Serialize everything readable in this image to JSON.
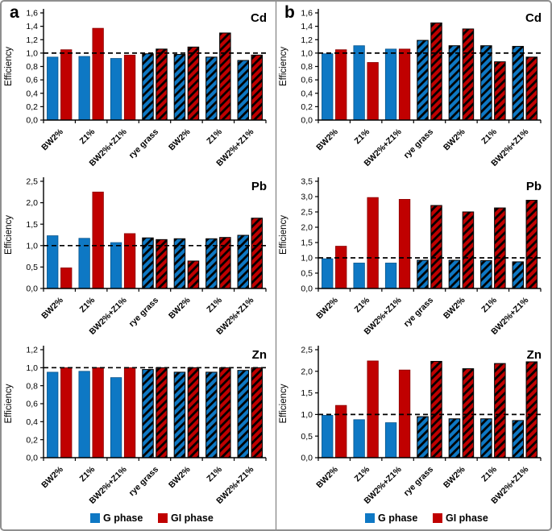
{
  "figure": {
    "background": "#ffffff",
    "border_color": "#8f8f8f",
    "divider_color": "#707070"
  },
  "panels": [
    {
      "label": "a"
    },
    {
      "label": "b"
    }
  ],
  "colors": {
    "g_phase": "#0e78c4",
    "gi_phase": "#c00000",
    "hatch": "#000000",
    "reference_line": "#000000"
  },
  "legend": {
    "g_label": "G phase",
    "gi_label": "GI phase",
    "position": "bottom-center"
  },
  "chart_data": [
    {
      "type": "bar",
      "panel": "a",
      "title": "Cd",
      "ylabel": "Efficiency",
      "ylim": [
        0,
        1.6
      ],
      "yticks": [
        0,
        0.2,
        0.4,
        0.6,
        0.8,
        1.0,
        1.2,
        1.4,
        1.6
      ],
      "ytick_labels": [
        "0,0",
        "0,2",
        "0,4",
        "0,6",
        "0,8",
        "1,0",
        "1,2",
        "1,4",
        "1,6"
      ],
      "ref_line": 1.0,
      "grid": false,
      "categories": [
        "BW2%",
        "Z1%",
        "BW2%+Z1%",
        "rye grass",
        "BW2%",
        "Z1%",
        "BW2%+Z1%"
      ],
      "hatched_from_category_index": 3,
      "series": [
        {
          "name": "G phase",
          "color": "#0e78c4",
          "values": [
            0.94,
            0.95,
            0.92,
            0.99,
            0.98,
            0.94,
            0.89
          ]
        },
        {
          "name": "GI phase",
          "color": "#c00000",
          "values": [
            1.05,
            1.37,
            0.97,
            1.06,
            1.09,
            1.3,
            0.97
          ]
        }
      ],
      "legend_visible": false
    },
    {
      "type": "bar",
      "panel": "b",
      "title": "Cd",
      "ylabel": "Efficiency",
      "ylim": [
        0,
        1.6
      ],
      "yticks": [
        0,
        0.2,
        0.4,
        0.6,
        0.8,
        1.0,
        1.2,
        1.4,
        1.6
      ],
      "ytick_labels": [
        "0,0",
        "0,2",
        "0,4",
        "0,6",
        "0,8",
        "1,0",
        "1,2",
        "1,4",
        "1,6"
      ],
      "ref_line": 1.0,
      "grid": false,
      "categories": [
        "BW2%",
        "Z1%",
        "BW2%+Z1%",
        "rye grass",
        "BW2%",
        "Z1%",
        "BW2%+Z1%"
      ],
      "hatched_from_category_index": 3,
      "series": [
        {
          "name": "G phase",
          "color": "#0e78c4",
          "values": [
            0.99,
            1.11,
            1.06,
            1.19,
            1.11,
            1.11,
            1.1
          ]
        },
        {
          "name": "GI phase",
          "color": "#c00000",
          "values": [
            1.05,
            0.86,
            1.06,
            1.45,
            1.36,
            0.87,
            0.94
          ]
        }
      ],
      "legend_visible": false
    },
    {
      "type": "bar",
      "panel": "a",
      "title": "Pb",
      "ylabel": "Efficiency",
      "ylim": [
        0,
        2.5
      ],
      "yticks": [
        0,
        0.5,
        1.0,
        1.5,
        2.0,
        2.5
      ],
      "ytick_labels": [
        "0,0",
        "0,5",
        "1,0",
        "1,5",
        "2,0",
        "2,5"
      ],
      "ref_line": 1.0,
      "grid": false,
      "categories": [
        "BW2%",
        "Z1%",
        "BW2%+Z1%",
        "rye grass",
        "BW2%",
        "Z1%",
        "BW2%+Z1%"
      ],
      "hatched_from_category_index": 3,
      "series": [
        {
          "name": "G phase",
          "color": "#0e78c4",
          "values": [
            1.23,
            1.17,
            1.07,
            1.18,
            1.16,
            1.16,
            1.24
          ]
        },
        {
          "name": "GI phase",
          "color": "#c00000",
          "values": [
            0.48,
            2.25,
            1.28,
            1.14,
            0.64,
            1.19,
            1.64
          ]
        }
      ],
      "legend_visible": false
    },
    {
      "type": "bar",
      "panel": "b",
      "title": "Pb",
      "ylabel": "Efficiency",
      "ylim": [
        0,
        3.5
      ],
      "yticks": [
        0,
        0.5,
        1.0,
        1.5,
        2.0,
        2.5,
        3.0,
        3.5
      ],
      "ytick_labels": [
        "0,0",
        "0,5",
        "1,0",
        "1,5",
        "2,0",
        "2,5",
        "3,0",
        "3,5"
      ],
      "ref_line": 1.0,
      "grid": false,
      "categories": [
        "BW2%",
        "Z1%",
        "BW2%+Z1%",
        "rye grass",
        "BW2%",
        "Z1%",
        "BW2%+Z1%"
      ],
      "hatched_from_category_index": 3,
      "series": [
        {
          "name": "G phase",
          "color": "#0e78c4",
          "values": [
            0.97,
            0.83,
            0.83,
            0.92,
            0.92,
            0.91,
            0.87
          ]
        },
        {
          "name": "GI phase",
          "color": "#c00000",
          "values": [
            1.38,
            2.97,
            2.91,
            2.71,
            2.5,
            2.63,
            2.88
          ]
        }
      ],
      "legend_visible": false
    },
    {
      "type": "bar",
      "panel": "a",
      "title": "Zn",
      "ylabel": "Efficiency",
      "ylim": [
        0,
        1.2
      ],
      "yticks": [
        0,
        0.2,
        0.4,
        0.6,
        0.8,
        1.0,
        1.2
      ],
      "ytick_labels": [
        "0,0",
        "0,2",
        "0,4",
        "0,6",
        "0,8",
        "1,0",
        "1,2"
      ],
      "ref_line": 1.0,
      "grid": false,
      "categories": [
        "BW2%",
        "Z1%",
        "BW2%+Z1%",
        "rye grass",
        "BW2%",
        "Z1%",
        "BW2%+Z1%"
      ],
      "hatched_from_category_index": 3,
      "series": [
        {
          "name": "G phase",
          "color": "#0e78c4",
          "values": [
            0.95,
            0.96,
            0.89,
            0.98,
            0.95,
            0.95,
            0.97
          ]
        },
        {
          "name": "GI phase",
          "color": "#c00000",
          "values": [
            1.0,
            1.0,
            1.0,
            1.0,
            1.0,
            1.0,
            1.0
          ]
        }
      ],
      "legend_visible": true
    },
    {
      "type": "bar",
      "panel": "b",
      "title": "Zn",
      "ylabel": "Efficiency",
      "ylim": [
        0,
        2.5
      ],
      "yticks": [
        0,
        0.5,
        1.0,
        1.5,
        2.0,
        2.5
      ],
      "ytick_labels": [
        "0,0",
        "0,5",
        "1,0",
        "1,5",
        "2,0",
        "2,5"
      ],
      "ref_line": 1.0,
      "grid": false,
      "categories": [
        "BW2%",
        "Z1%",
        "BW2%+Z1%",
        "rye grass",
        "BW2%",
        "Z1%",
        "BW2%+Z1%"
      ],
      "hatched_from_category_index": 3,
      "series": [
        {
          "name": "G phase",
          "color": "#0e78c4",
          "values": [
            0.98,
            0.88,
            0.81,
            0.95,
            0.9,
            0.9,
            0.86
          ]
        },
        {
          "name": "GI phase",
          "color": "#c00000",
          "values": [
            1.21,
            2.24,
            2.03,
            2.23,
            2.06,
            2.18,
            2.22
          ]
        }
      ],
      "legend_visible": true
    }
  ]
}
